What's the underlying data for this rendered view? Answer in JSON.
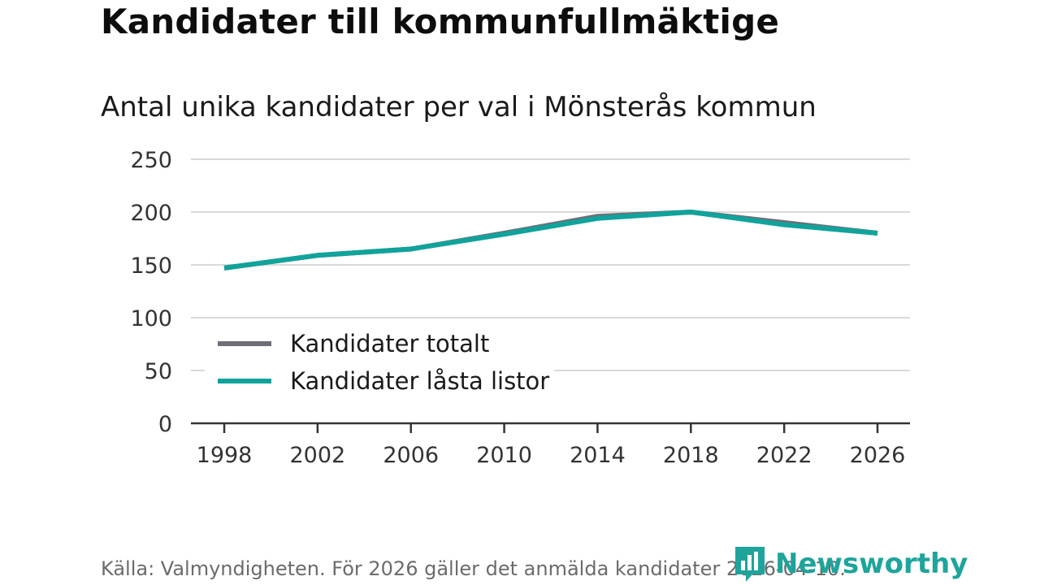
{
  "header": {
    "title": "Kandidater till kommunfullmäktige",
    "subtitle": "Antal unika kandidater per val i Mönsterås kommun"
  },
  "footer": {
    "source": "Källa: Valmyndigheten. För 2026 gäller det anmälda kandidater 2026-04-10.",
    "brand": "Newsworthy"
  },
  "colors": {
    "totalt": "#6e6e78",
    "lasta": "#10a39b",
    "grid": "#d9d9d9",
    "axis": "#333333",
    "brand": "#1ea49b"
  },
  "chart_data": {
    "type": "line",
    "title": "Kandidater till kommunfullmäktige",
    "subtitle": "Antal unika kandidater per val i Mönsterås kommun",
    "x": [
      1998,
      2002,
      2006,
      2010,
      2014,
      2018,
      2022,
      2026
    ],
    "x_tick_labels": [
      "1998",
      "2002",
      "2006",
      "2010",
      "2014",
      "2018",
      "2022",
      "2026"
    ],
    "y_ticks": [
      0,
      50,
      100,
      150,
      200,
      250
    ],
    "y_tick_labels": [
      "0",
      "50",
      "100",
      "150",
      "200",
      "250"
    ],
    "ylim": [
      0,
      250
    ],
    "xlabel": "",
    "ylabel": "",
    "grid": true,
    "legend_position": "bottom-left",
    "series": [
      {
        "name": "Kandidater totalt",
        "color_key": "totalt",
        "values": [
          147,
          159,
          165,
          180,
          196,
          200,
          190,
          180
        ]
      },
      {
        "name": "Kandidater låsta listor",
        "color_key": "lasta",
        "values": [
          147,
          159,
          165,
          179,
          194,
          200,
          188,
          180
        ]
      }
    ]
  }
}
